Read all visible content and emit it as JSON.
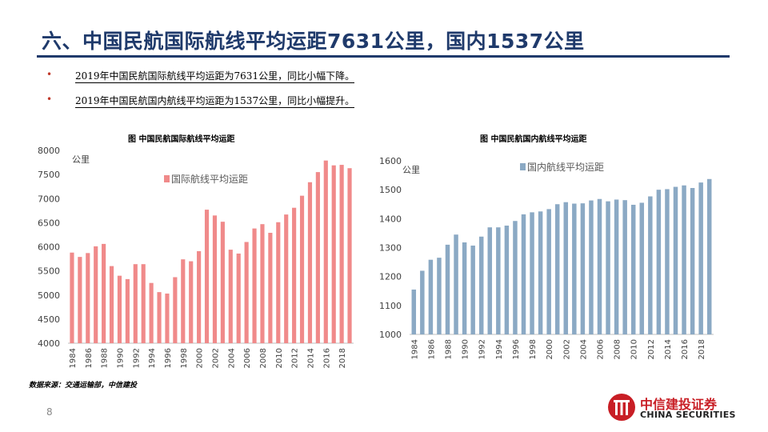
{
  "slide": {
    "title": "六、中国民航国际航线平均运距7631公里，国内1537公里",
    "bullets": [
      "2019年中国民航国际航线平均运距为7631公里，同比小幅下降。",
      "2019年中国民航国内航线平均运距为1537公里，同比小幅提升。"
    ],
    "bullet_symbol": "•",
    "source": "数据来源：交通运输部，中信建投",
    "page_number": "8",
    "logo": {
      "cn": "中信建投证券",
      "en": "CHINA SECURITIES"
    },
    "colors": {
      "title": "#1f3a6b",
      "bullet": "#c0392b",
      "logo": "#c81e25"
    }
  },
  "chart_data": [
    {
      "type": "bar",
      "title": "图  中国民航国际航线平均运距",
      "ylabel": "公里",
      "legend": "国际航线平均运距",
      "legend_position": "top-center",
      "color": "#f08a8a",
      "ylim": [
        4000,
        8000
      ],
      "yticks": [
        4000,
        4500,
        5000,
        5500,
        6000,
        6500,
        7000,
        7500,
        8000
      ],
      "categories": [
        "1984",
        "1985",
        "1986",
        "1987",
        "1988",
        "1989",
        "1990",
        "1991",
        "1992",
        "1993",
        "1994",
        "1995",
        "1996",
        "1997",
        "1998",
        "1999",
        "2000",
        "2001",
        "2002",
        "2003",
        "2004",
        "2005",
        "2006",
        "2007",
        "2008",
        "2009",
        "2010",
        "2011",
        "2012",
        "2013",
        "2014",
        "2015",
        "2016",
        "2017",
        "2018",
        "2019"
      ],
      "xtick_labels": [
        "1984",
        "1986",
        "1988",
        "1990",
        "1992",
        "1994",
        "1996",
        "1998",
        "2000",
        "2002",
        "2004",
        "2006",
        "2008",
        "2010",
        "2012",
        "2014",
        "2016",
        "2018"
      ],
      "values": [
        5880,
        5790,
        5870,
        6010,
        6060,
        5600,
        5400,
        5330,
        5640,
        5640,
        5250,
        5060,
        5030,
        5370,
        5740,
        5700,
        5910,
        6770,
        6650,
        6520,
        5940,
        5860,
        6100,
        6380,
        6470,
        6290,
        6510,
        6670,
        6810,
        7060,
        7340,
        7550,
        7790,
        7690,
        7700,
        7631
      ],
      "grid": false
    },
    {
      "type": "bar",
      "title": "图  中国民航国内航线平均运距",
      "ylabel": "公里",
      "legend": "国内航线平均运距",
      "legend_position": "top-center",
      "color": "#8ba9c4",
      "ylim": [
        1000,
        1600
      ],
      "yticks": [
        1000,
        1100,
        1200,
        1300,
        1400,
        1500,
        1600
      ],
      "categories": [
        "1984",
        "1985",
        "1986",
        "1987",
        "1988",
        "1989",
        "1990",
        "1991",
        "1992",
        "1993",
        "1994",
        "1995",
        "1996",
        "1997",
        "1998",
        "1999",
        "2000",
        "2001",
        "2002",
        "2003",
        "2004",
        "2005",
        "2006",
        "2007",
        "2008",
        "2009",
        "2010",
        "2011",
        "2012",
        "2013",
        "2014",
        "2015",
        "2016",
        "2017",
        "2018",
        "2019"
      ],
      "xtick_labels": [
        "1984",
        "1986",
        "1988",
        "1990",
        "1992",
        "1994",
        "1996",
        "1998",
        "2000",
        "2002",
        "2004",
        "2006",
        "2008",
        "2010",
        "2012",
        "2014",
        "2016",
        "2018"
      ],
      "values": [
        1155,
        1220,
        1258,
        1265,
        1310,
        1345,
        1318,
        1307,
        1338,
        1370,
        1370,
        1376,
        1392,
        1415,
        1422,
        1425,
        1433,
        1450,
        1457,
        1452,
        1453,
        1463,
        1468,
        1460,
        1466,
        1464,
        1448,
        1455,
        1477,
        1500,
        1502,
        1510,
        1515,
        1506,
        1525,
        1537
      ],
      "grid": false
    }
  ]
}
